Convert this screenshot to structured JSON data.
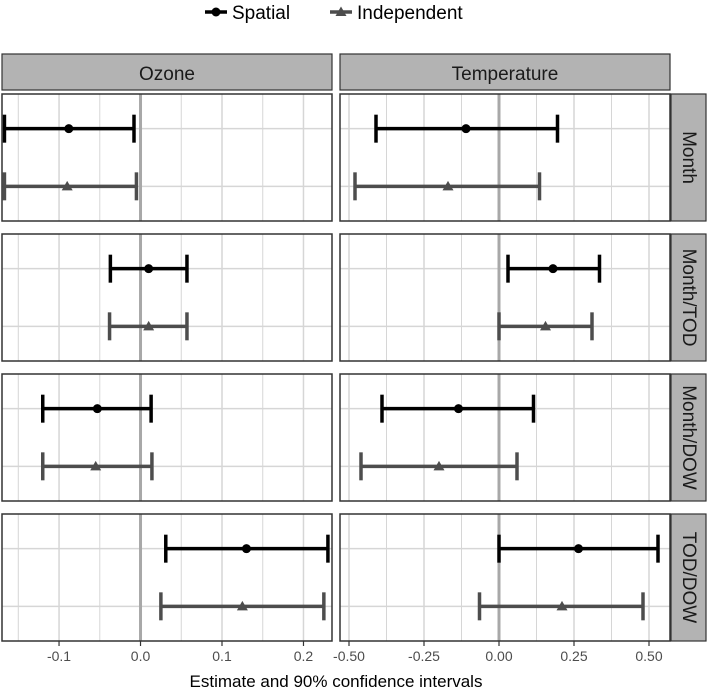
{
  "chart_data": {
    "type": "forest",
    "xlabel": "Estimate and 90% confidence intervals",
    "legend": {
      "position": "top",
      "entries": [
        {
          "name": "Spatial",
          "shape": "circle",
          "color": "#000000"
        },
        {
          "name": "Independent",
          "shape": "triangle",
          "color": "#4d4d4d"
        }
      ]
    },
    "columns": [
      {
        "name": "Ozone",
        "xlim": [
          -0.17,
          0.235
        ],
        "ticks": [
          -0.1,
          0.0,
          0.1,
          0.2
        ],
        "tick_labels": [
          "-0.1",
          "0.0",
          "0.1",
          "0.2"
        ],
        "minor_ticks": [
          -0.15,
          -0.05,
          0.05,
          0.15
        ]
      },
      {
        "name": "Temperature",
        "xlim": [
          -0.53,
          0.57
        ],
        "ticks": [
          -0.5,
          -0.25,
          0.0,
          0.25,
          0.5
        ],
        "tick_labels": [
          "-0.50",
          "-0.25",
          "0.00",
          "0.25",
          "0.50"
        ],
        "minor_ticks": [
          -0.375,
          -0.125,
          0.125,
          0.375
        ]
      }
    ],
    "rows": [
      "Month",
      "Month/TOD",
      "Month/DOW",
      "TOD/DOW"
    ],
    "reference_line": 0,
    "series": [
      {
        "name": "Spatial",
        "Ozone": [
          {
            "row": "Month",
            "estimate": -0.088,
            "lower": -0.167,
            "upper": -0.008
          },
          {
            "row": "Month/TOD",
            "estimate": 0.01,
            "lower": -0.037,
            "upper": 0.057
          },
          {
            "row": "Month/DOW",
            "estimate": -0.053,
            "lower": -0.12,
            "upper": 0.013
          },
          {
            "row": "TOD/DOW",
            "estimate": 0.13,
            "lower": 0.031,
            "upper": 0.23
          }
        ],
        "Temperature": [
          {
            "row": "Month",
            "estimate": -0.11,
            "lower": -0.41,
            "upper": 0.195
          },
          {
            "row": "Month/TOD",
            "estimate": 0.18,
            "lower": 0.03,
            "upper": 0.335
          },
          {
            "row": "Month/DOW",
            "estimate": -0.135,
            "lower": -0.39,
            "upper": 0.115
          },
          {
            "row": "TOD/DOW",
            "estimate": 0.265,
            "lower": 0.0,
            "upper": 0.53
          }
        ]
      },
      {
        "name": "Independent",
        "Ozone": [
          {
            "row": "Month",
            "estimate": -0.09,
            "lower": -0.167,
            "upper": -0.005
          },
          {
            "row": "Month/TOD",
            "estimate": 0.01,
            "lower": -0.038,
            "upper": 0.057
          },
          {
            "row": "Month/DOW",
            "estimate": -0.055,
            "lower": -0.12,
            "upper": 0.014
          },
          {
            "row": "TOD/DOW",
            "estimate": 0.125,
            "lower": 0.025,
            "upper": 0.225
          }
        ],
        "Temperature": [
          {
            "row": "Month",
            "estimate": -0.17,
            "lower": -0.48,
            "upper": 0.135
          },
          {
            "row": "Month/TOD",
            "estimate": 0.155,
            "lower": 0.0,
            "upper": 0.31
          },
          {
            "row": "Month/DOW",
            "estimate": -0.2,
            "lower": -0.46,
            "upper": 0.06
          },
          {
            "row": "TOD/DOW",
            "estimate": 0.21,
            "lower": -0.065,
            "upper": 0.48
          }
        ]
      }
    ]
  }
}
